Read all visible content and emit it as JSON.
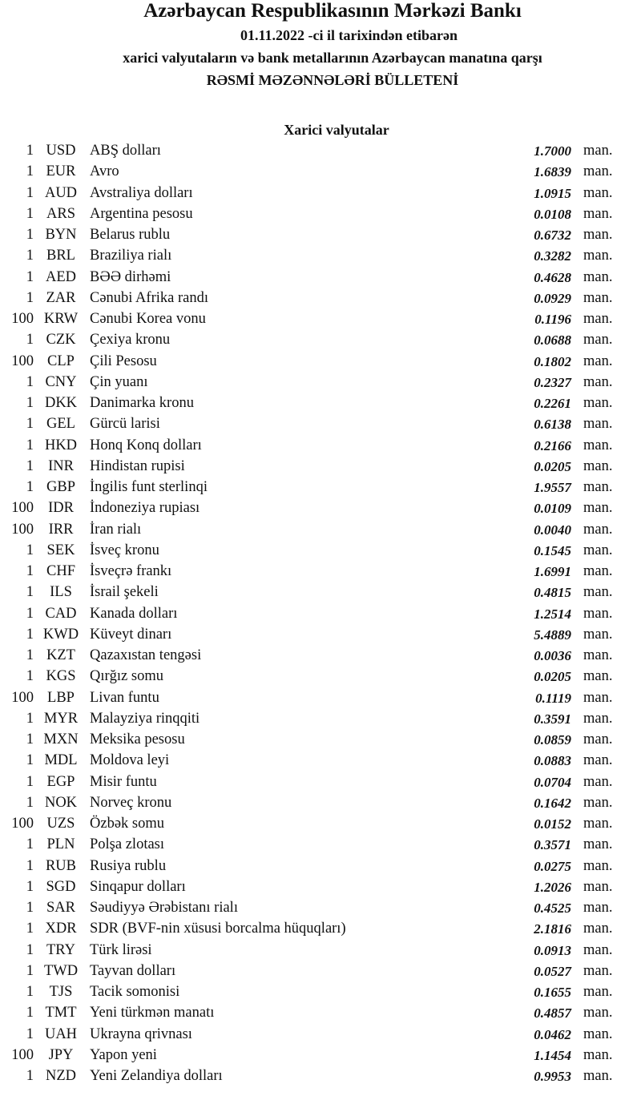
{
  "header": {
    "title": "Azərbaycan Respublikasının Mərkəzi Bankı",
    "date_line": "01.11.2022 -ci il tarixindən etibarən",
    "subtitle": "xarici valyutaların və bank metallarının Azərbaycan manatına qarşı",
    "bulletin": "RƏSMİ MƏZƏNNƏLƏRİ BÜLLETENİ",
    "section": "Xarici valyutalar"
  },
  "rates": [
    {
      "amount": "1",
      "code": "USD",
      "name": "ABŞ dolları",
      "value": "1.7000",
      "unit": "man."
    },
    {
      "amount": "1",
      "code": "EUR",
      "name": "Avro",
      "value": "1.6839",
      "unit": "man."
    },
    {
      "amount": "1",
      "code": "AUD",
      "name": "Avstraliya dolları",
      "value": "1.0915",
      "unit": "man."
    },
    {
      "amount": "1",
      "code": "ARS",
      "name": "Argentina pesosu",
      "value": "0.0108",
      "unit": "man."
    },
    {
      "amount": "1",
      "code": "BYN",
      "name": "Belarus rublu",
      "value": "0.6732",
      "unit": "man."
    },
    {
      "amount": "1",
      "code": "BRL",
      "name": "Braziliya rialı",
      "value": "0.3282",
      "unit": "man."
    },
    {
      "amount": "1",
      "code": "AED",
      "name": "BƏƏ dirhəmi",
      "value": "0.4628",
      "unit": "man."
    },
    {
      "amount": "1",
      "code": "ZAR",
      "name": "Cənubi Afrika randı",
      "value": "0.0929",
      "unit": "man."
    },
    {
      "amount": "100",
      "code": "KRW",
      "name": "Cənubi Korea vonu",
      "value": "0.1196",
      "unit": "man."
    },
    {
      "amount": "1",
      "code": "CZK",
      "name": "Çexiya kronu",
      "value": "0.0688",
      "unit": "man."
    },
    {
      "amount": "100",
      "code": "CLP",
      "name": "Çili Pesosu",
      "value": "0.1802",
      "unit": "man."
    },
    {
      "amount": "1",
      "code": "CNY",
      "name": "Çin yuanı",
      "value": "0.2327",
      "unit": "man."
    },
    {
      "amount": "1",
      "code": "DKK",
      "name": "Danimarka kronu",
      "value": "0.2261",
      "unit": "man."
    },
    {
      "amount": "1",
      "code": "GEL",
      "name": "Gürcü larisi",
      "value": "0.6138",
      "unit": "man."
    },
    {
      "amount": "1",
      "code": "HKD",
      "name": "Honq Konq dolları",
      "value": "0.2166",
      "unit": "man."
    },
    {
      "amount": "1",
      "code": "INR",
      "name": "Hindistan rupisi",
      "value": "0.0205",
      "unit": "man."
    },
    {
      "amount": "1",
      "code": "GBP",
      "name": "İngilis funt sterlinqi",
      "value": "1.9557",
      "unit": "man."
    },
    {
      "amount": "100",
      "code": "IDR",
      "name": "İndoneziya rupiası",
      "value": "0.0109",
      "unit": "man."
    },
    {
      "amount": "100",
      "code": "IRR",
      "name": "İran rialı",
      "value": "0.0040",
      "unit": "man."
    },
    {
      "amount": "1",
      "code": "SEK",
      "name": "İsveç kronu",
      "value": "0.1545",
      "unit": "man."
    },
    {
      "amount": "1",
      "code": "CHF",
      "name": "İsveçrə frankı",
      "value": "1.6991",
      "unit": "man."
    },
    {
      "amount": "1",
      "code": "ILS",
      "name": "İsrail şekeli",
      "value": "0.4815",
      "unit": "man."
    },
    {
      "amount": "1",
      "code": "CAD",
      "name": "Kanada dolları",
      "value": "1.2514",
      "unit": "man."
    },
    {
      "amount": "1",
      "code": "KWD",
      "name": "Küveyt dinarı",
      "value": "5.4889",
      "unit": "man."
    },
    {
      "amount": "1",
      "code": "KZT",
      "name": "Qazaxıstan tengəsi",
      "value": "0.0036",
      "unit": "man."
    },
    {
      "amount": "1",
      "code": "KGS",
      "name": "Qırğız somu",
      "value": "0.0205",
      "unit": "man."
    },
    {
      "amount": "100",
      "code": "LBP",
      "name": "Livan funtu",
      "value": "0.1119",
      "unit": "man."
    },
    {
      "amount": "1",
      "code": "MYR",
      "name": "Malayziya rinqqiti",
      "value": "0.3591",
      "unit": "man."
    },
    {
      "amount": "1",
      "code": "MXN",
      "name": "Meksika pesosu",
      "value": "0.0859",
      "unit": "man."
    },
    {
      "amount": "1",
      "code": "MDL",
      "name": "Moldova leyi",
      "value": "0.0883",
      "unit": "man."
    },
    {
      "amount": "1",
      "code": "EGP",
      "name": "Misir funtu",
      "value": "0.0704",
      "unit": "man."
    },
    {
      "amount": "1",
      "code": "NOK",
      "name": "Norveç kronu",
      "value": "0.1642",
      "unit": "man."
    },
    {
      "amount": "100",
      "code": "UZS",
      "name": "Özbək somu",
      "value": "0.0152",
      "unit": "man."
    },
    {
      "amount": "1",
      "code": "PLN",
      "name": "Polşa zlotası",
      "value": "0.3571",
      "unit": "man."
    },
    {
      "amount": "1",
      "code": "RUB",
      "name": "Rusiya rublu",
      "value": "0.0275",
      "unit": "man."
    },
    {
      "amount": "1",
      "code": "SGD",
      "name": "Sinqapur dolları",
      "value": "1.2026",
      "unit": "man."
    },
    {
      "amount": "1",
      "code": "SAR",
      "name": "Səudiyyə Ərəbistanı rialı",
      "value": "0.4525",
      "unit": "man."
    },
    {
      "amount": "1",
      "code": "XDR",
      "name": "SDR (BVF-nin xüsusi borcalma hüquqları)",
      "value": "2.1816",
      "unit": "man."
    },
    {
      "amount": "1",
      "code": "TRY",
      "name": "Türk lirəsi",
      "value": "0.0913",
      "unit": "man."
    },
    {
      "amount": "1",
      "code": "TWD",
      "name": "Tayvan dolları",
      "value": "0.0527",
      "unit": "man."
    },
    {
      "amount": "1",
      "code": "TJS",
      "name": "Tacik somonisi",
      "value": "0.1655",
      "unit": "man."
    },
    {
      "amount": "1",
      "code": "TMT",
      "name": "Yeni türkmən manatı",
      "value": "0.4857",
      "unit": "man."
    },
    {
      "amount": "1",
      "code": "UAH",
      "name": "Ukrayna qrivnası",
      "value": "0.0462",
      "unit": "man."
    },
    {
      "amount": "100",
      "code": "JPY",
      "name": "Yapon yeni",
      "value": "1.1454",
      "unit": "man."
    },
    {
      "amount": "1",
      "code": "NZD",
      "name": "Yeni Zelandiya dolları",
      "value": "0.9953",
      "unit": "man."
    }
  ]
}
